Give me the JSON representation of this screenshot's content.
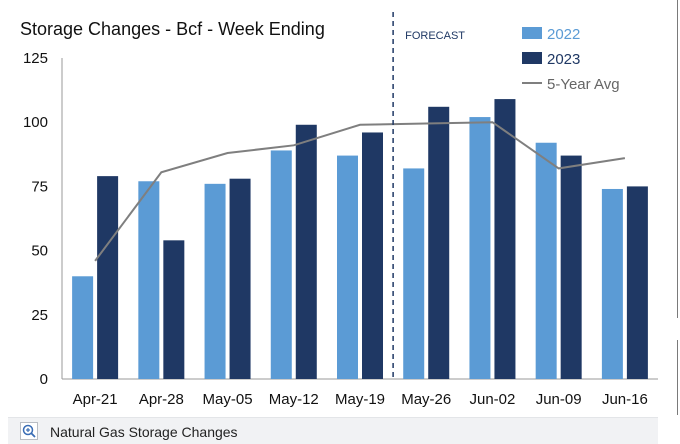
{
  "chart_data": {
    "type": "bar",
    "title": "Storage Changes - Bcf - Week Ending",
    "categories": [
      "Apr-21",
      "Apr-28",
      "May-05",
      "May-12",
      "May-19",
      "May-26",
      "Jun-02",
      "Jun-09",
      "Jun-16"
    ],
    "series": [
      {
        "name": "2022",
        "type": "bar",
        "color": "#5b9bd5",
        "values": [
          40,
          77,
          76,
          89,
          87,
          82,
          102,
          92,
          74
        ]
      },
      {
        "name": "2023",
        "type": "bar",
        "color": "#1f3864",
        "values": [
          79,
          54,
          78,
          99,
          96,
          106,
          109,
          87,
          75
        ]
      },
      {
        "name": "5-Year Avg",
        "type": "line",
        "color": "#7f7f7f",
        "values": [
          46,
          80.5,
          88,
          91,
          99,
          99.5,
          100,
          82,
          86
        ]
      }
    ],
    "ylim": [
      0,
      125
    ],
    "yticks": [
      0,
      25,
      50,
      75,
      100,
      125
    ],
    "grid": false,
    "legend_position": "top-right",
    "annotation": {
      "text": "FORECAST",
      "position_between": [
        "May-19",
        "May-26"
      ],
      "style": "dashed-vertical-line"
    }
  },
  "footer": {
    "caption": "Natural Gas Storage Changes",
    "zoom_icon": "magnifier-plus-icon"
  }
}
